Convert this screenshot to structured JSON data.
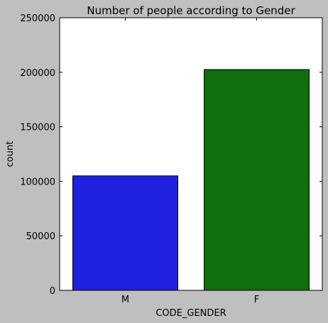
{
  "chart_data": {
    "type": "bar",
    "title": "Number of people according to Gender",
    "xlabel": "CODE_GENDER",
    "ylabel": "count",
    "categories": [
      "M",
      "F"
    ],
    "values": [
      105000,
      202500
    ],
    "colors": [
      "#2020e0",
      "#0f6e0f"
    ],
    "ylim": [
      0,
      250000
    ],
    "yticks": [
      0,
      50000,
      100000,
      150000,
      200000,
      250000
    ],
    "ytick_labels": [
      "0",
      "50000",
      "100000",
      "150000",
      "200000",
      "250000"
    ],
    "grid": false,
    "legend": "none"
  }
}
